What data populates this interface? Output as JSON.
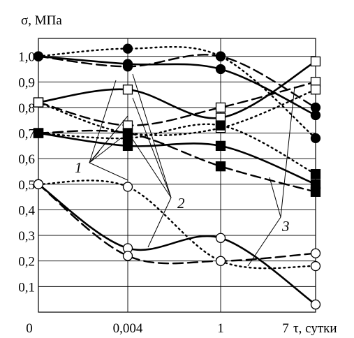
{
  "chart_data": {
    "type": "line",
    "ylabel": "σ, МПа",
    "xlabel": "τ, сутки",
    "x_ticks": [
      "0",
      "0,004",
      "1",
      "7"
    ],
    "y_ticks": [
      "0,1",
      "0,2",
      "0,3",
      "0,4",
      "0,5",
      "0,6",
      "0,7",
      "0,8",
      "0,9",
      "1,0"
    ],
    "ylim": [
      0,
      1.07
    ],
    "grid": true,
    "groups": [
      {
        "marker": "filled-circle",
        "series": [
          {
            "style": "solid",
            "values": [
              1.0,
              0.97,
              0.95,
              0.77
            ]
          },
          {
            "style": "dashed",
            "values": [
              1.0,
              0.96,
              1.0,
              0.8
            ]
          },
          {
            "style": "dotted",
            "values": [
              1.0,
              1.03,
              1.0,
              0.68
            ]
          }
        ]
      },
      {
        "marker": "open-square",
        "series": [
          {
            "style": "solid",
            "values": [
              0.82,
              0.87,
              0.76,
              0.98
            ]
          },
          {
            "style": "dashed",
            "values": [
              0.82,
              0.73,
              0.8,
              0.9
            ]
          },
          {
            "style": "dotted",
            "values": [
              0.82,
              0.7,
              0.72,
              0.87
            ]
          }
        ]
      },
      {
        "marker": "filled-square",
        "series": [
          {
            "style": "solid",
            "values": [
              0.7,
              0.65,
              0.65,
              0.5
            ]
          },
          {
            "style": "dashed",
            "values": [
              0.7,
              0.7,
              0.57,
              0.47
            ]
          },
          {
            "style": "dotted",
            "values": [
              0.7,
              0.68,
              0.73,
              0.54
            ]
          }
        ]
      },
      {
        "marker": "open-circle",
        "series": [
          {
            "style": "solid",
            "values": [
              0.5,
              0.25,
              0.29,
              0.03
            ]
          },
          {
            "style": "dashed",
            "values": [
              0.5,
              0.22,
              0.2,
              0.23
            ]
          },
          {
            "style": "dotted",
            "values": [
              0.5,
              0.49,
              0.2,
              0.18
            ]
          }
        ]
      }
    ],
    "annotations": [
      {
        "label": "1"
      },
      {
        "label": "2"
      },
      {
        "label": "3"
      }
    ]
  }
}
